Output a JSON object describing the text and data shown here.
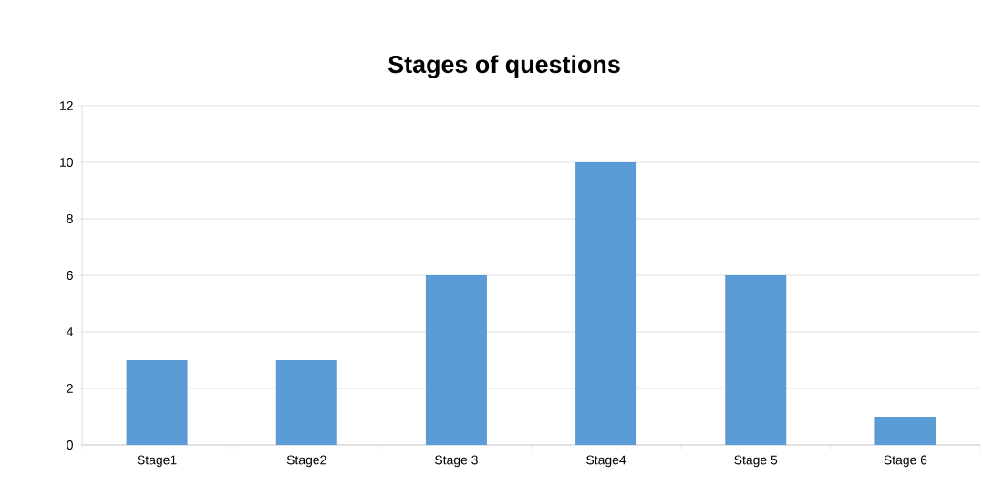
{
  "chart_data": {
    "type": "bar",
    "title": "Stages of questions",
    "categories": [
      "Stage1",
      "Stage2",
      "Stage 3",
      "Stage4",
      "Stage 5",
      "Stage 6"
    ],
    "values": [
      3,
      3,
      6,
      10,
      6,
      1
    ],
    "color": "#5b9bd5",
    "ylim": [
      0,
      12
    ],
    "yticks": [
      0,
      2,
      4,
      6,
      8,
      10,
      12
    ],
    "grid": "y"
  }
}
